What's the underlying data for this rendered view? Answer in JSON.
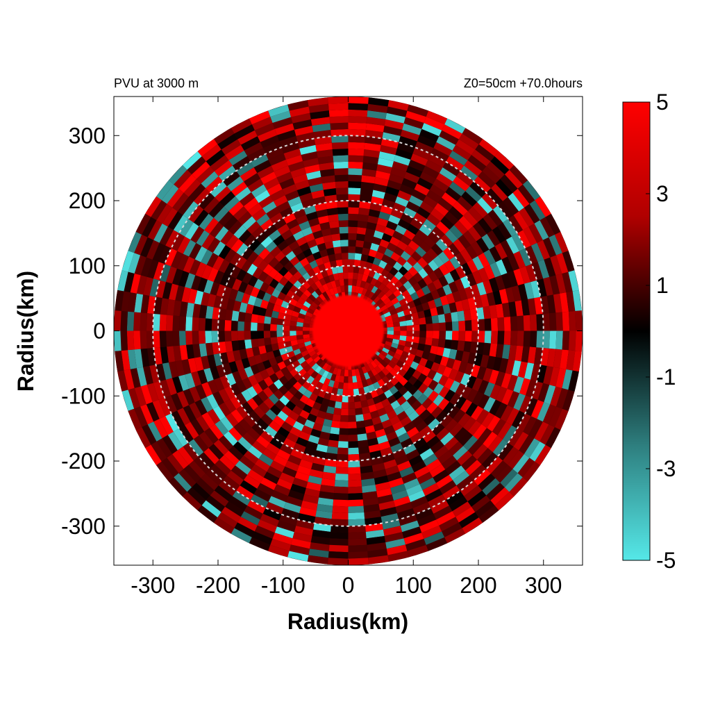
{
  "chart_data": {
    "type": "heatmap",
    "title_left": "PVU at  3000 m",
    "title_right": "Z0=50cm  +70.0hours",
    "xlabel": "Radius(km)",
    "ylabel": "Radius(km)",
    "xlim": [
      -360,
      360
    ],
    "ylim": [
      -360,
      360
    ],
    "xticks": [
      -300,
      -200,
      -100,
      0,
      100,
      200,
      300
    ],
    "yticks": [
      300,
      200,
      100,
      0,
      -100,
      -200,
      -300
    ],
    "domain_radius_km": 360,
    "range_rings_km": [
      100,
      200,
      300
    ],
    "colorbar": {
      "min": -5,
      "max": 5,
      "tick_values": [
        5,
        3,
        1,
        -1,
        -3,
        -5
      ],
      "tick_labels": [
        "5",
        "3",
        "1",
        "-1",
        "-3",
        "-5"
      ],
      "colors": {
        "high": "#ff0000",
        "mid": "#000000",
        "low": "#55e8e8"
      }
    },
    "features": {
      "core_radius_km": 55,
      "core_value": 5
    }
  }
}
